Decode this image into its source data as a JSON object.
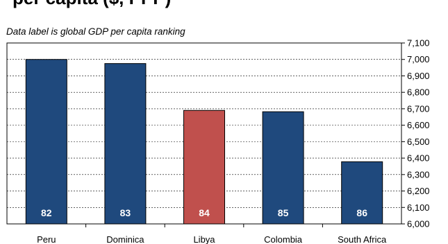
{
  "header": {
    "title_fragment": "per capita ($, PPP)",
    "subtitle": "Data label is global GDP per capita ranking"
  },
  "chart_data": {
    "type": "bar",
    "title": "per capita ($, PPP)",
    "subtitle": "Data label is global GDP per capita ranking",
    "categories": [
      "Peru",
      "Dominica",
      "Libya",
      "Colombia",
      "South Africa"
    ],
    "values": [
      7000,
      6975,
      6690,
      6682,
      6378
    ],
    "data_labels": [
      "82",
      "83",
      "84",
      "85",
      "86"
    ],
    "ylim": [
      6000,
      7100
    ],
    "yticks": [
      6000,
      6100,
      6200,
      6300,
      6400,
      6500,
      6600,
      6700,
      6800,
      6900,
      7000,
      7100
    ],
    "ytick_labels": [
      "6,000",
      "6,100",
      "6,200",
      "6,300",
      "6,400",
      "6,500",
      "6,600",
      "6,700",
      "6,800",
      "6,900",
      "7,000",
      "7,100"
    ],
    "y_axis_side": "right",
    "grid": true,
    "colors": {
      "default": "#1f497d",
      "highlight": "#c0504d"
    },
    "highlight_category": "Libya"
  }
}
